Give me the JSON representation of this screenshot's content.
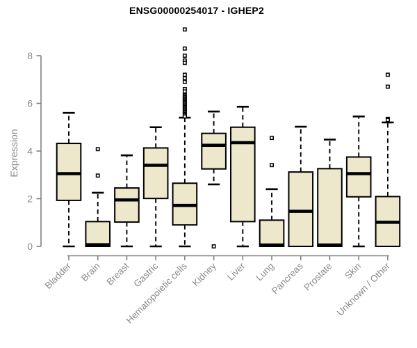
{
  "chart_data": {
    "type": "boxplot",
    "title": "ENSG00000254017 - IGHEP2",
    "ylabel": "Expression",
    "xlabel": "",
    "ylim": [
      0,
      9.3
    ],
    "yticks": [
      0,
      2,
      4,
      6,
      8
    ],
    "grid": false,
    "legend": "none",
    "box_fill": "#ede7cb",
    "box_stroke": "#000000",
    "axis_color": "#808080",
    "label_color": "#8a8a8a",
    "categories": [
      "Bladder",
      "Brain",
      "Breast",
      "Gastric",
      "Hematopoietic cells",
      "Kidney",
      "Liver",
      "Lung",
      "Pancreas",
      "Prostate",
      "Skin",
      "Unknown / Other"
    ],
    "series": [
      {
        "name": "Bladder",
        "low": 0,
        "q1": 1.93,
        "median": 3.05,
        "q3": 4.32,
        "high": 5.6,
        "outliers": []
      },
      {
        "name": "Brain",
        "low": 0,
        "q1": 0,
        "median": 0.07,
        "q3": 1.04,
        "high": 2.25,
        "outliers": [
          4.08,
          2.97
        ]
      },
      {
        "name": "Breast",
        "low": 0,
        "q1": 1.02,
        "median": 1.95,
        "q3": 2.45,
        "high": 3.82,
        "outliers": []
      },
      {
        "name": "Gastric",
        "low": 0,
        "q1": 2.01,
        "median": 3.4,
        "q3": 4.13,
        "high": 5.0,
        "outliers": []
      },
      {
        "name": "Hematopoietic cells",
        "low": 0,
        "q1": 0.9,
        "median": 1.72,
        "q3": 2.65,
        "high": 5.4,
        "outliers": [
          9.1,
          8.3,
          8.0,
          7.8,
          7.7,
          7.2,
          7.05,
          6.9,
          6.6,
          6.5,
          6.35,
          6.3,
          6.25,
          6.2,
          6.15,
          6.1,
          6.05,
          6.0,
          5.95,
          5.9,
          5.85,
          5.8,
          5.75,
          5.7,
          5.65,
          5.6,
          5.55,
          5.5,
          5.45
        ]
      },
      {
        "name": "Kidney",
        "low": 2.6,
        "q1": 3.25,
        "median": 4.24,
        "q3": 4.74,
        "high": 5.66,
        "outliers": [
          0.0
        ]
      },
      {
        "name": "Liver",
        "low": 0,
        "q1": 1.04,
        "median": 4.35,
        "q3": 5.0,
        "high": 5.86,
        "outliers": []
      },
      {
        "name": "Lung",
        "low": 0,
        "q1": 0,
        "median": 0.06,
        "q3": 1.1,
        "high": 2.4,
        "outliers": [
          4.55,
          3.41
        ]
      },
      {
        "name": "Pancreas",
        "low": 0,
        "q1": 0,
        "median": 1.47,
        "q3": 3.12,
        "high": 5.02,
        "outliers": []
      },
      {
        "name": "Prostate",
        "low": 0,
        "q1": 0,
        "median": 0.06,
        "q3": 3.26,
        "high": 4.48,
        "outliers": []
      },
      {
        "name": "Skin",
        "low": 0,
        "q1": 2.08,
        "median": 3.05,
        "q3": 3.75,
        "high": 5.45,
        "outliers": []
      },
      {
        "name": "Unknown / Other",
        "low": 0,
        "q1": 0,
        "median": 1.01,
        "q3": 2.09,
        "high": 5.2,
        "outliers": [
          7.2,
          6.7,
          5.35,
          5.3
        ]
      }
    ]
  }
}
